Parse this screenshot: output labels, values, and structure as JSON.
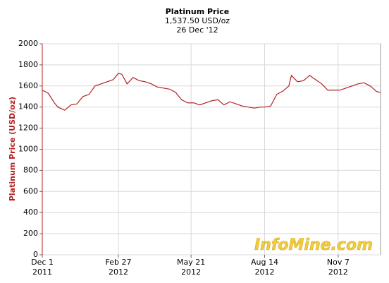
{
  "chart_data": {
    "type": "line",
    "title": "Platinum Price",
    "subtitle": "1,537.50 USD/oz",
    "date_label": "26 Dec '12",
    "y_label": "Platinum Price (USD/oz)",
    "watermark": "InfoMine.com",
    "x": [
      "2011-12-01",
      "2011-12-08",
      "2011-12-15",
      "2011-12-19",
      "2011-12-27",
      "2012-01-03",
      "2012-01-10",
      "2012-01-17",
      "2012-01-24",
      "2012-01-31",
      "2012-02-07",
      "2012-02-14",
      "2012-02-21",
      "2012-02-27",
      "2012-03-02",
      "2012-03-08",
      "2012-03-15",
      "2012-03-22",
      "2012-03-29",
      "2012-04-05",
      "2012-04-12",
      "2012-04-19",
      "2012-04-26",
      "2012-05-03",
      "2012-05-10",
      "2012-05-17",
      "2012-05-24",
      "2012-05-31",
      "2012-06-07",
      "2012-06-14",
      "2012-06-21",
      "2012-06-28",
      "2012-07-05",
      "2012-07-12",
      "2012-07-19",
      "2012-07-26",
      "2012-08-02",
      "2012-08-09",
      "2012-08-14",
      "2012-08-21",
      "2012-08-28",
      "2012-09-04",
      "2012-09-11",
      "2012-09-14",
      "2012-09-21",
      "2012-09-28",
      "2012-10-05",
      "2012-10-12",
      "2012-10-19",
      "2012-10-26",
      "2012-11-02",
      "2012-11-09",
      "2012-11-16",
      "2012-11-23",
      "2012-11-30",
      "2012-12-07",
      "2012-12-14",
      "2012-12-21",
      "2012-12-26"
    ],
    "series": [
      {
        "name": "Platinum Price",
        "color": "#b22222",
        "values": [
          1560,
          1530,
          1440,
          1400,
          1370,
          1420,
          1430,
          1500,
          1520,
          1600,
          1620,
          1640,
          1660,
          1720,
          1710,
          1620,
          1680,
          1650,
          1640,
          1620,
          1590,
          1580,
          1570,
          1540,
          1470,
          1440,
          1440,
          1420,
          1440,
          1460,
          1470,
          1420,
          1450,
          1430,
          1410,
          1400,
          1390,
          1400,
          1400,
          1410,
          1520,
          1550,
          1600,
          1700,
          1640,
          1650,
          1700,
          1660,
          1620,
          1560,
          1560,
          1560,
          1580,
          1600,
          1620,
          1630,
          1600,
          1550,
          1537.5
        ]
      }
    ],
    "xlim": [
      "2011-12-01",
      "2012-12-26"
    ],
    "xticks": [
      {
        "value": "2011-12-01",
        "label": "Dec 1",
        "year": "2011"
      },
      {
        "value": "2012-02-27",
        "label": "Feb 27",
        "year": "2012"
      },
      {
        "value": "2012-05-21",
        "label": "May 21",
        "year": "2012"
      },
      {
        "value": "2012-08-14",
        "label": "Aug 14",
        "year": "2012"
      },
      {
        "value": "2012-11-07",
        "label": "Nov 7",
        "year": "2012"
      }
    ],
    "ylim": [
      0,
      2000
    ],
    "yticks": [
      0,
      200,
      400,
      600,
      800,
      1000,
      1200,
      1400,
      1600,
      1800,
      2000
    ],
    "grid": true
  }
}
